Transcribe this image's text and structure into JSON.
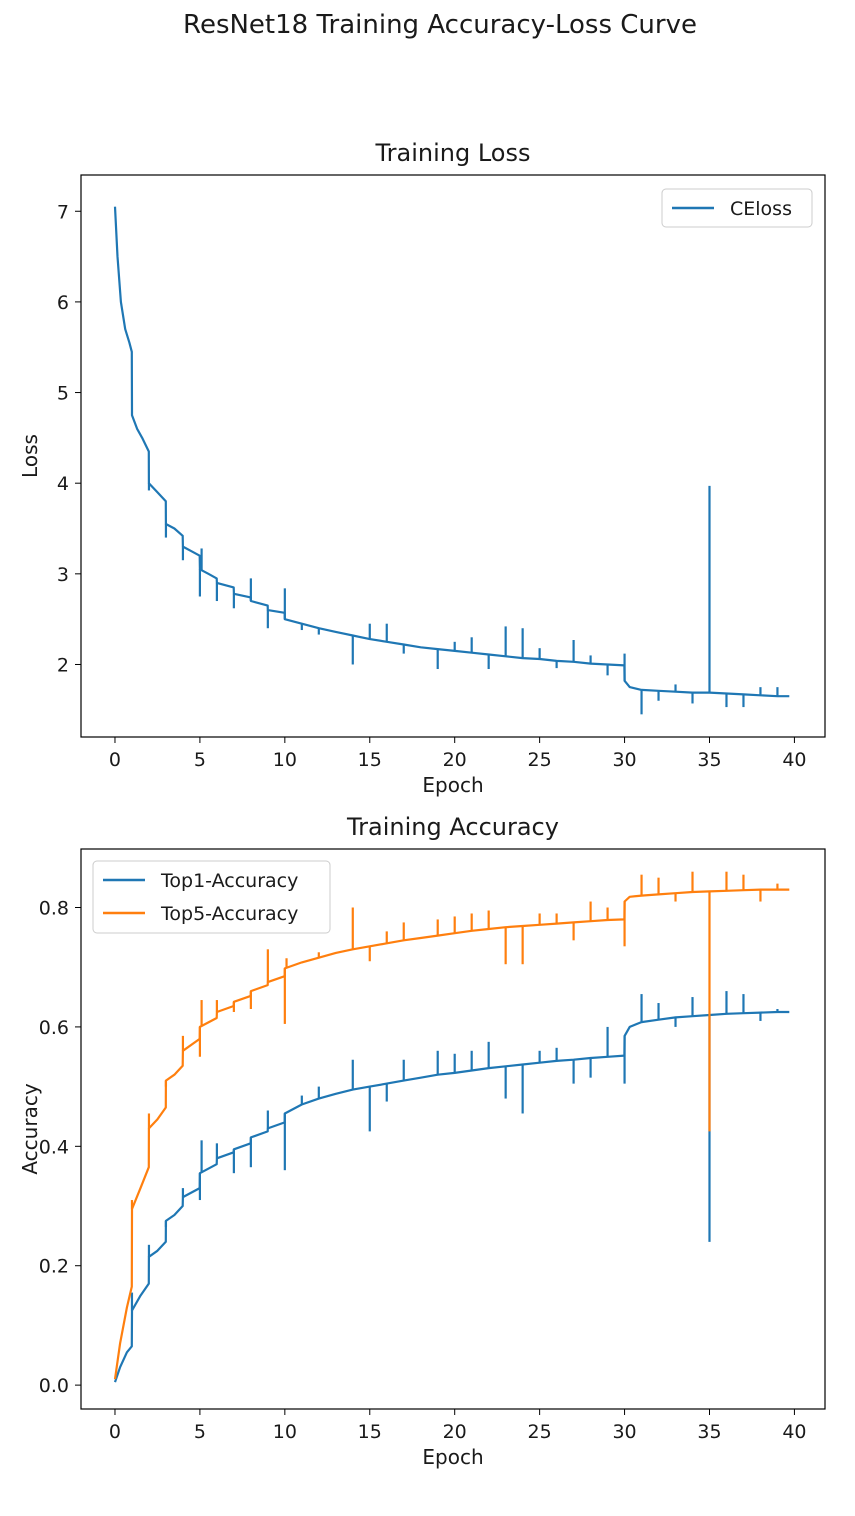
{
  "figure": {
    "suptitle": "ResNet18 Training Accuracy-Loss Curve"
  },
  "chart_data": [
    {
      "type": "line",
      "title": "Training Loss",
      "xlabel": "Epoch",
      "ylabel": "Loss",
      "xlim": [
        -2,
        41.8
      ],
      "ylim": [
        1.2,
        7.4
      ],
      "xticks": [
        0,
        5,
        10,
        15,
        20,
        25,
        30,
        35,
        40
      ],
      "yticks": [
        2,
        3,
        4,
        5,
        6,
        7
      ],
      "legend_position": "upper right",
      "grid": false,
      "series": [
        {
          "name": "CEloss",
          "color": "#1f77b4",
          "x": [
            0,
            0.15,
            0.35,
            0.6,
            0.85,
            0.99,
            1.0,
            1.3,
            1.6,
            1.99,
            2.0,
            2.5,
            2.99,
            3.0,
            3.5,
            3.99,
            4.0,
            4.5,
            4.99,
            5.0,
            5.5,
            5.99,
            6.0,
            6.99,
            7.0,
            7.99,
            8.0,
            8.99,
            9.0,
            9.99,
            10.0,
            11,
            12,
            13,
            14,
            15,
            16,
            17,
            18,
            19,
            20,
            21,
            22,
            23,
            24,
            25,
            26,
            27,
            28,
            29,
            29.99,
            30.0,
            30.3,
            31,
            32,
            33,
            34,
            35,
            36,
            37,
            38,
            39,
            39.7
          ],
          "y": [
            7.05,
            6.5,
            6.0,
            5.7,
            5.55,
            5.45,
            4.75,
            4.6,
            4.5,
            4.35,
            4.0,
            3.9,
            3.8,
            3.55,
            3.5,
            3.42,
            3.3,
            3.25,
            3.2,
            3.05,
            3.0,
            2.95,
            2.9,
            2.85,
            2.78,
            2.74,
            2.7,
            2.65,
            2.6,
            2.57,
            2.5,
            2.45,
            2.4,
            2.36,
            2.32,
            2.28,
            2.25,
            2.22,
            2.19,
            2.17,
            2.15,
            2.13,
            2.11,
            2.09,
            2.07,
            2.06,
            2.04,
            2.03,
            2.01,
            2.0,
            1.99,
            1.82,
            1.75,
            1.72,
            1.71,
            1.7,
            1.69,
            1.69,
            1.68,
            1.67,
            1.66,
            1.65,
            1.65
          ],
          "spikes": [
            [
              2.0,
              3.92
            ],
            [
              3.0,
              3.4
            ],
            [
              4.0,
              3.15
            ],
            [
              5.0,
              2.75
            ],
            [
              5.1,
              3.28
            ],
            [
              6.0,
              2.7
            ],
            [
              7.0,
              2.62
            ],
            [
              8.0,
              2.95
            ],
            [
              9.0,
              2.4
            ],
            [
              10.0,
              2.84
            ],
            [
              11.0,
              2.38
            ],
            [
              12.0,
              2.33
            ],
            [
              14.0,
              2.0
            ],
            [
              15.0,
              2.45
            ],
            [
              16.0,
              2.45
            ],
            [
              17.0,
              2.12
            ],
            [
              19.0,
              1.95
            ],
            [
              20.0,
              2.25
            ],
            [
              21.0,
              2.3
            ],
            [
              22.0,
              1.95
            ],
            [
              23.0,
              2.42
            ],
            [
              24.0,
              2.4
            ],
            [
              25.0,
              2.18
            ],
            [
              26.0,
              1.96
            ],
            [
              27.0,
              2.27
            ],
            [
              28.0,
              2.1
            ],
            [
              29.0,
              1.88
            ],
            [
              30.0,
              2.12
            ],
            [
              31.0,
              1.45
            ],
            [
              32.0,
              1.6
            ],
            [
              33.0,
              1.78
            ],
            [
              34.0,
              1.57
            ],
            [
              35.0,
              3.97
            ],
            [
              36.0,
              1.53
            ],
            [
              37.0,
              1.53
            ],
            [
              38.0,
              1.75
            ],
            [
              39.0,
              1.75
            ]
          ]
        }
      ]
    },
    {
      "type": "line",
      "title": "Training Accuracy",
      "xlabel": "Epoch",
      "ylabel": "Accuracy",
      "xlim": [
        -2,
        41.8
      ],
      "ylim": [
        -0.04,
        0.898
      ],
      "xticks": [
        0,
        5,
        10,
        15,
        20,
        25,
        30,
        35,
        40
      ],
      "yticks": [
        0.0,
        0.2,
        0.4,
        0.6,
        0.8
      ],
      "legend_position": "upper left",
      "grid": false,
      "series": [
        {
          "name": "Top1-Accuracy",
          "color": "#1f77b4",
          "x": [
            0,
            0.3,
            0.7,
            0.99,
            1.0,
            1.5,
            1.99,
            2.0,
            2.5,
            2.99,
            3.0,
            3.5,
            3.99,
            4.0,
            4.99,
            5.0,
            5.99,
            6.0,
            6.99,
            7.0,
            7.99,
            8.0,
            8.99,
            9.0,
            9.99,
            10.0,
            11,
            12,
            13,
            14,
            15,
            16,
            17,
            18,
            19,
            20,
            21,
            22,
            23,
            24,
            25,
            26,
            27,
            28,
            29,
            29.99,
            30.0,
            30.3,
            31,
            32,
            33,
            34,
            35,
            36,
            37,
            38,
            39,
            39.7
          ],
          "y": [
            0.005,
            0.03,
            0.055,
            0.065,
            0.125,
            0.15,
            0.17,
            0.215,
            0.225,
            0.24,
            0.275,
            0.285,
            0.3,
            0.315,
            0.33,
            0.355,
            0.37,
            0.38,
            0.39,
            0.395,
            0.405,
            0.415,
            0.425,
            0.43,
            0.44,
            0.455,
            0.47,
            0.48,
            0.488,
            0.495,
            0.5,
            0.505,
            0.51,
            0.515,
            0.52,
            0.523,
            0.527,
            0.531,
            0.534,
            0.537,
            0.54,
            0.543,
            0.545,
            0.548,
            0.55,
            0.552,
            0.585,
            0.6,
            0.608,
            0.612,
            0.616,
            0.618,
            0.62,
            0.622,
            0.623,
            0.624,
            0.625,
            0.625
          ],
          "spikes": [
            [
              1.0,
              0.155
            ],
            [
              2.0,
              0.235
            ],
            [
              3.0,
              0.265
            ],
            [
              4.0,
              0.33
            ],
            [
              5.0,
              0.31
            ],
            [
              5.1,
              0.41
            ],
            [
              6.0,
              0.405
            ],
            [
              7.0,
              0.355
            ],
            [
              8.0,
              0.365
            ],
            [
              9.0,
              0.46
            ],
            [
              10.0,
              0.36
            ],
            [
              11.0,
              0.485
            ],
            [
              12.0,
              0.5
            ],
            [
              14.0,
              0.545
            ],
            [
              15.0,
              0.425
            ],
            [
              16.0,
              0.475
            ],
            [
              17.0,
              0.545
            ],
            [
              19.0,
              0.56
            ],
            [
              20.0,
              0.555
            ],
            [
              21.0,
              0.56
            ],
            [
              22.0,
              0.575
            ],
            [
              23.0,
              0.48
            ],
            [
              24.0,
              0.455
            ],
            [
              25.0,
              0.56
            ],
            [
              26.0,
              0.565
            ],
            [
              27.0,
              0.505
            ],
            [
              28.0,
              0.515
            ],
            [
              29.0,
              0.6
            ],
            [
              30.0,
              0.505
            ],
            [
              31.0,
              0.655
            ],
            [
              32.0,
              0.64
            ],
            [
              33.0,
              0.6
            ],
            [
              34.0,
              0.65
            ],
            [
              35.0,
              0.24
            ],
            [
              36.0,
              0.66
            ],
            [
              37.0,
              0.655
            ],
            [
              38.0,
              0.61
            ],
            [
              39.0,
              0.63
            ]
          ]
        },
        {
          "name": "Top5-Accuracy",
          "color": "#ff7f0e",
          "x": [
            0,
            0.3,
            0.7,
            0.99,
            1.0,
            1.5,
            1.99,
            2.0,
            2.5,
            2.99,
            3.0,
            3.5,
            3.99,
            4.0,
            4.99,
            5.0,
            5.99,
            6.0,
            6.99,
            7.0,
            7.99,
            8.0,
            8.99,
            9.0,
            9.99,
            10.0,
            11,
            12,
            13,
            14,
            15,
            16,
            17,
            18,
            19,
            20,
            21,
            22,
            23,
            24,
            25,
            26,
            27,
            28,
            29,
            29.99,
            30.0,
            30.3,
            31,
            32,
            33,
            34,
            35,
            36,
            37,
            38,
            39,
            39.7
          ],
          "y": [
            0.01,
            0.07,
            0.13,
            0.165,
            0.295,
            0.33,
            0.365,
            0.43,
            0.445,
            0.465,
            0.51,
            0.52,
            0.535,
            0.56,
            0.58,
            0.6,
            0.615,
            0.625,
            0.635,
            0.642,
            0.652,
            0.66,
            0.67,
            0.675,
            0.685,
            0.698,
            0.708,
            0.716,
            0.724,
            0.73,
            0.735,
            0.74,
            0.745,
            0.749,
            0.753,
            0.757,
            0.761,
            0.764,
            0.767,
            0.769,
            0.771,
            0.773,
            0.775,
            0.777,
            0.779,
            0.78,
            0.81,
            0.818,
            0.82,
            0.822,
            0.824,
            0.826,
            0.827,
            0.828,
            0.829,
            0.83,
            0.83,
            0.83
          ],
          "spikes": [
            [
              1.0,
              0.31
            ],
            [
              2.0,
              0.455
            ],
            [
              3.0,
              0.5
            ],
            [
              4.0,
              0.585
            ],
            [
              5.0,
              0.55
            ],
            [
              5.1,
              0.645
            ],
            [
              6.0,
              0.645
            ],
            [
              7.0,
              0.625
            ],
            [
              8.0,
              0.63
            ],
            [
              9.0,
              0.73
            ],
            [
              10.0,
              0.605
            ],
            [
              10.1,
              0.715
            ],
            [
              12.0,
              0.725
            ],
            [
              14.0,
              0.8
            ],
            [
              15.0,
              0.71
            ],
            [
              16.0,
              0.76
            ],
            [
              17.0,
              0.775
            ],
            [
              19.0,
              0.78
            ],
            [
              20.0,
              0.785
            ],
            [
              21.0,
              0.79
            ],
            [
              22.0,
              0.795
            ],
            [
              23.0,
              0.705
            ],
            [
              24.0,
              0.705
            ],
            [
              25.0,
              0.79
            ],
            [
              26.0,
              0.79
            ],
            [
              27.0,
              0.745
            ],
            [
              28.0,
              0.81
            ],
            [
              29.0,
              0.8
            ],
            [
              30.0,
              0.735
            ],
            [
              31.0,
              0.855
            ],
            [
              32.0,
              0.85
            ],
            [
              33.0,
              0.81
            ],
            [
              34.0,
              0.86
            ],
            [
              35.0,
              0.425
            ],
            [
              36.0,
              0.86
            ],
            [
              37.0,
              0.855
            ],
            [
              38.0,
              0.81
            ],
            [
              39.0,
              0.84
            ]
          ]
        }
      ]
    }
  ]
}
